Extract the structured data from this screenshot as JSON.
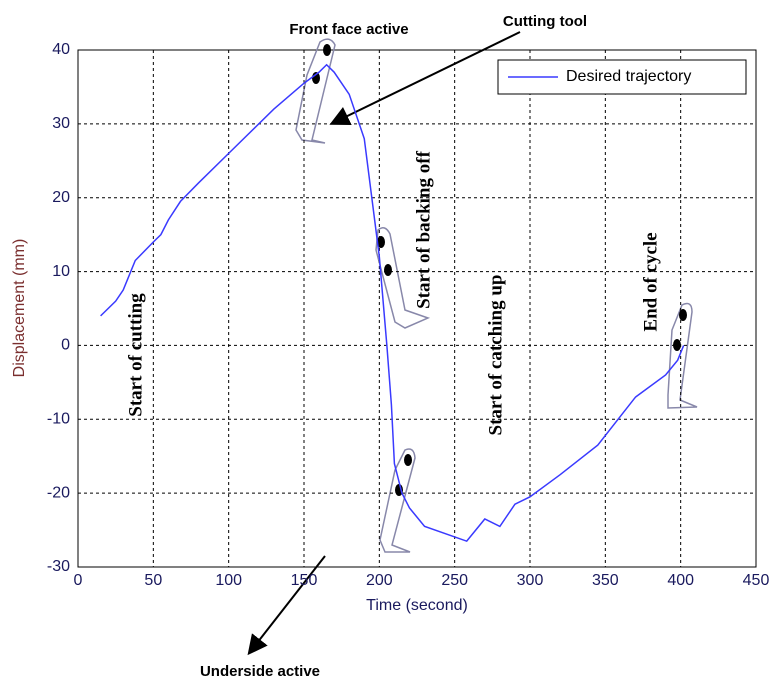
{
  "chart_data": {
    "type": "line",
    "x_label": "Time (second)",
    "y_label": "Displacement (mm)",
    "x": [
      15,
      25,
      30,
      35,
      38,
      50,
      55,
      60,
      68,
      80,
      100,
      130,
      150,
      160,
      165,
      170,
      180,
      190,
      195,
      200,
      205,
      208,
      210,
      215,
      220,
      230,
      258,
      270,
      280,
      290,
      300,
      320,
      345,
      370,
      390,
      398,
      402
    ],
    "series": [
      {
        "name": "Desired trajectory",
        "color": "#3a3aff",
        "values": [
          4,
          6,
          7.5,
          10,
          11.5,
          14,
          15,
          17,
          19.5,
          22,
          26,
          32,
          35.5,
          37,
          38,
          37,
          34,
          28,
          20,
          12,
          0,
          -8,
          -16,
          -20,
          -22,
          -24.5,
          -26.5,
          -23.5,
          -24.5,
          -21.5,
          -20.5,
          -17.5,
          -13.5,
          -7,
          -4,
          -2,
          0
        ]
      }
    ],
    "xlim": [
      0,
      450
    ],
    "xticks": [
      0,
      50,
      100,
      150,
      200,
      250,
      300,
      350,
      400,
      450
    ],
    "ylim": [
      -30,
      40
    ],
    "yticks": [
      -30,
      -20,
      -10,
      0,
      10,
      20,
      30,
      40
    ],
    "grid": true,
    "legend": "upper right",
    "annotations": [
      "Front face active",
      "Cutting tool",
      "Underside active",
      "Start of cutting",
      "Start of backing off",
      "Start of catching up",
      "End of cycle"
    ]
  }
}
